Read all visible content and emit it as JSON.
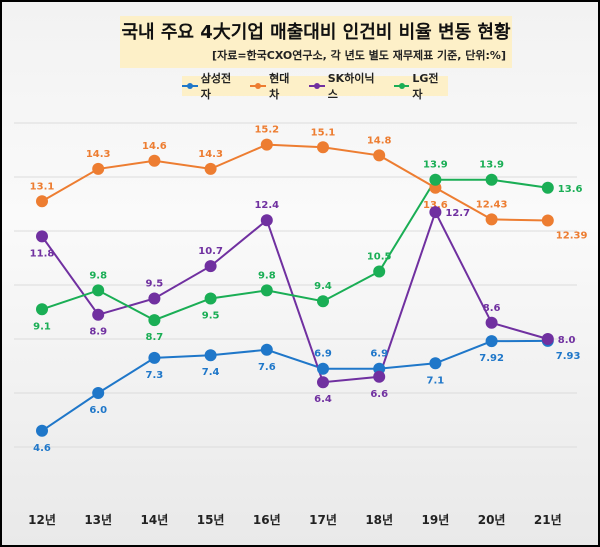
{
  "chart_data": {
    "type": "line",
    "title": "국내 주요 4大기업 매출대비 인건비 비율 변동 현황",
    "subtitle": "[자료=한국CXO연구소, 각 년도 별도 재무제표 기준, 단위:%]",
    "categories": [
      "12년",
      "13년",
      "14년",
      "15년",
      "16년",
      "17년",
      "18년",
      "19년",
      "20년",
      "21년"
    ],
    "ylim": [
      4,
      16
    ],
    "grid": true,
    "legend": "top",
    "series": [
      {
        "name": "삼성전자",
        "color": "#1f77c9",
        "values": [
          4.6,
          6.0,
          7.3,
          7.4,
          7.6,
          6.9,
          6.9,
          7.1,
          7.92,
          7.93
        ],
        "labels": [
          "4.6",
          "6.0",
          "7.3",
          "7.4",
          "7.6",
          "6.9",
          "6.9",
          "7.1",
          "7.92",
          "7.93"
        ]
      },
      {
        "name": "현대차",
        "color": "#ed7d31",
        "values": [
          13.1,
          14.3,
          14.6,
          14.3,
          15.2,
          15.1,
          14.8,
          13.6,
          12.43,
          12.39
        ],
        "labels": [
          "13.1",
          "14.3",
          "14.6",
          "14.3",
          "15.2",
          "15.1",
          "14.8",
          "13.6",
          "12.43",
          "12.39"
        ]
      },
      {
        "name": "SK하이닉스",
        "color": "#7030a0",
        "values": [
          11.8,
          8.9,
          9.5,
          10.7,
          12.4,
          6.4,
          6.6,
          12.7,
          8.6,
          8.0
        ],
        "labels": [
          "11.8",
          "8.9",
          "9.5",
          "10.7",
          "12.4",
          "6.4",
          "6.6",
          "12.7",
          "8.6",
          "8.0"
        ]
      },
      {
        "name": "LG전자",
        "color": "#1aae55",
        "values": [
          9.1,
          9.8,
          8.7,
          9.5,
          9.8,
          9.4,
          10.5,
          13.9,
          13.9,
          13.6
        ],
        "labels": [
          "9.1",
          "9.8",
          "8.7",
          "9.5",
          "9.8",
          "9.4",
          "10.5",
          "13.9",
          "13.9",
          "13.6"
        ]
      }
    ]
  }
}
